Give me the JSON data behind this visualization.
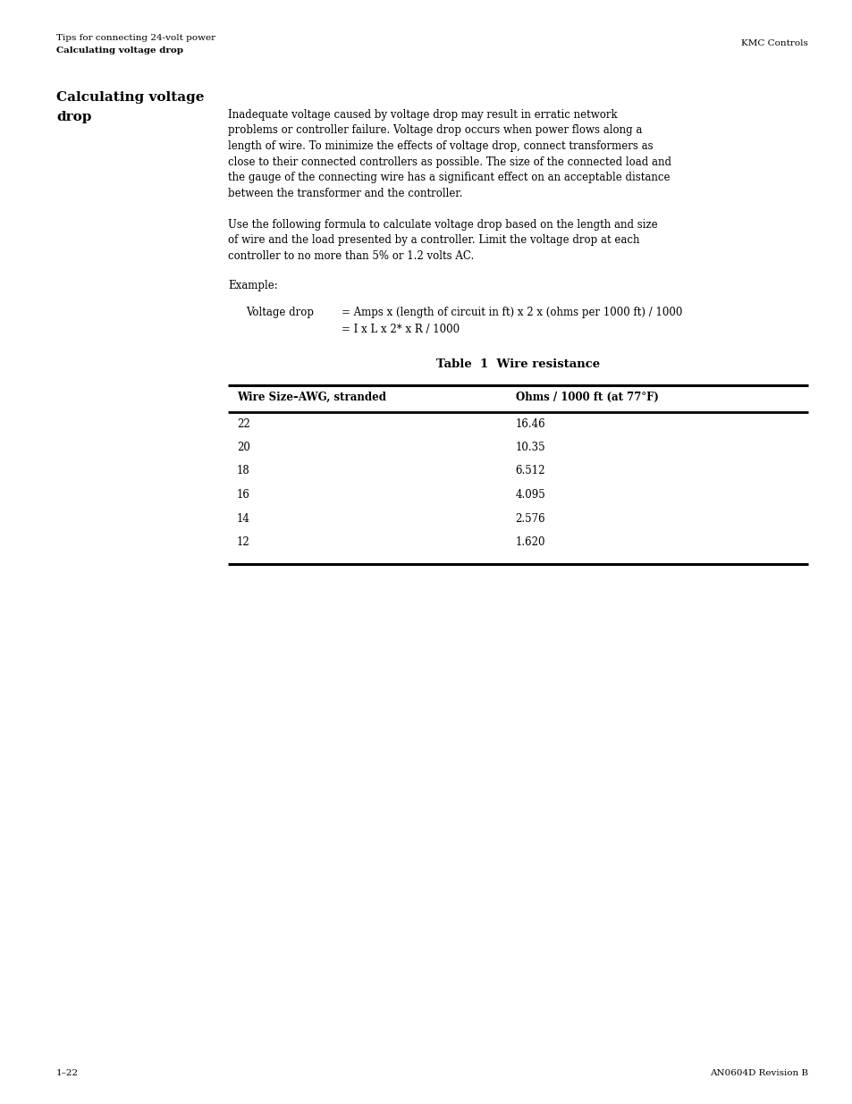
{
  "page_width": 9.54,
  "page_height": 12.35,
  "bg_color": "#ffffff",
  "header_line1": "Tips for connecting 24-volt power",
  "header_line2_bold": "Calculating voltage drop",
  "header_right": "KMC Controls",
  "section_title_line1": "Calculating voltage",
  "section_title_line2": "drop",
  "body_para1_lines": [
    "Inadequate voltage caused by voltage drop may result in erratic network",
    "problems or controller failure. Voltage drop occurs when power flows along a",
    "length of wire. To minimize the effects of voltage drop, connect transformers as",
    "close to their connected controllers as possible. The size of the connected load and",
    "the gauge of the connecting wire has a significant effect on an acceptable distance",
    "between the transformer and the controller."
  ],
  "body_para2_lines": [
    "Use the following formula to calculate voltage drop based on the length and size",
    "of wire and the load presented by a controller. Limit the voltage drop at each",
    "controller to no more than 5% or 1.2 volts AC."
  ],
  "example_label": "Example:",
  "formula_label": "Voltage drop",
  "formula_line1": "= Amps x (length of circuit in ft) x 2 x (ohms per 1000 ft) / 1000",
  "formula_line2": "= I x L x 2* x R / 1000",
  "table_title": "Table  1  Wire resistance",
  "col1_header": "Wire Size–AWG, stranded",
  "col2_header": "Ohms / 1000 ft (at 77°F)",
  "table_data": [
    [
      "22",
      "16.46"
    ],
    [
      "20",
      "10.35"
    ],
    [
      "18",
      "6.512"
    ],
    [
      "16",
      "4.095"
    ],
    [
      "14",
      "2.576"
    ],
    [
      "12",
      "1.620"
    ]
  ],
  "footer_left": "1–22",
  "footer_right": "AN0604D Revision B",
  "font_family": "DejaVu Serif"
}
